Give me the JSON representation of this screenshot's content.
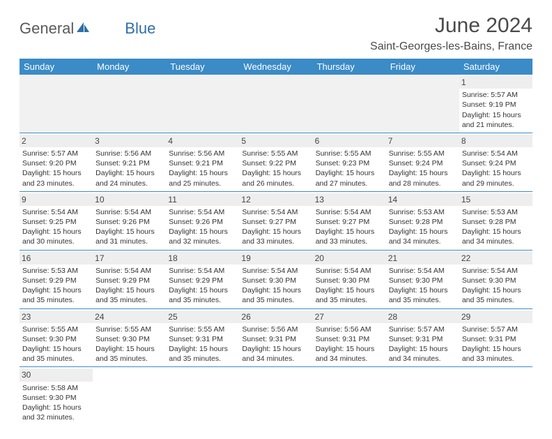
{
  "logo": {
    "text1": "General",
    "text2": "Blue"
  },
  "title": "June 2024",
  "location": "Saint-Georges-les-Bains, France",
  "colors": {
    "header_bg": "#3b8bc7",
    "header_text": "#ffffff",
    "daynum_bg": "#eeeeee",
    "border": "#3b8bc7",
    "body_text": "#333333",
    "title_text": "#4a4a4a"
  },
  "daysOfWeek": [
    "Sunday",
    "Monday",
    "Tuesday",
    "Wednesday",
    "Thursday",
    "Friday",
    "Saturday"
  ],
  "grid": [
    [
      null,
      null,
      null,
      null,
      null,
      null,
      {
        "n": "1",
        "sr": "5:57 AM",
        "ss": "9:19 PM",
        "dl": "15 hours and 21 minutes."
      }
    ],
    [
      {
        "n": "2",
        "sr": "5:57 AM",
        "ss": "9:20 PM",
        "dl": "15 hours and 23 minutes."
      },
      {
        "n": "3",
        "sr": "5:56 AM",
        "ss": "9:21 PM",
        "dl": "15 hours and 24 minutes."
      },
      {
        "n": "4",
        "sr": "5:56 AM",
        "ss": "9:21 PM",
        "dl": "15 hours and 25 minutes."
      },
      {
        "n": "5",
        "sr": "5:55 AM",
        "ss": "9:22 PM",
        "dl": "15 hours and 26 minutes."
      },
      {
        "n": "6",
        "sr": "5:55 AM",
        "ss": "9:23 PM",
        "dl": "15 hours and 27 minutes."
      },
      {
        "n": "7",
        "sr": "5:55 AM",
        "ss": "9:24 PM",
        "dl": "15 hours and 28 minutes."
      },
      {
        "n": "8",
        "sr": "5:54 AM",
        "ss": "9:24 PM",
        "dl": "15 hours and 29 minutes."
      }
    ],
    [
      {
        "n": "9",
        "sr": "5:54 AM",
        "ss": "9:25 PM",
        "dl": "15 hours and 30 minutes."
      },
      {
        "n": "10",
        "sr": "5:54 AM",
        "ss": "9:26 PM",
        "dl": "15 hours and 31 minutes."
      },
      {
        "n": "11",
        "sr": "5:54 AM",
        "ss": "9:26 PM",
        "dl": "15 hours and 32 minutes."
      },
      {
        "n": "12",
        "sr": "5:54 AM",
        "ss": "9:27 PM",
        "dl": "15 hours and 33 minutes."
      },
      {
        "n": "13",
        "sr": "5:54 AM",
        "ss": "9:27 PM",
        "dl": "15 hours and 33 minutes."
      },
      {
        "n": "14",
        "sr": "5:53 AM",
        "ss": "9:28 PM",
        "dl": "15 hours and 34 minutes."
      },
      {
        "n": "15",
        "sr": "5:53 AM",
        "ss": "9:28 PM",
        "dl": "15 hours and 34 minutes."
      }
    ],
    [
      {
        "n": "16",
        "sr": "5:53 AM",
        "ss": "9:29 PM",
        "dl": "15 hours and 35 minutes."
      },
      {
        "n": "17",
        "sr": "5:54 AM",
        "ss": "9:29 PM",
        "dl": "15 hours and 35 minutes."
      },
      {
        "n": "18",
        "sr": "5:54 AM",
        "ss": "9:29 PM",
        "dl": "15 hours and 35 minutes."
      },
      {
        "n": "19",
        "sr": "5:54 AM",
        "ss": "9:30 PM",
        "dl": "15 hours and 35 minutes."
      },
      {
        "n": "20",
        "sr": "5:54 AM",
        "ss": "9:30 PM",
        "dl": "15 hours and 35 minutes."
      },
      {
        "n": "21",
        "sr": "5:54 AM",
        "ss": "9:30 PM",
        "dl": "15 hours and 35 minutes."
      },
      {
        "n": "22",
        "sr": "5:54 AM",
        "ss": "9:30 PM",
        "dl": "15 hours and 35 minutes."
      }
    ],
    [
      {
        "n": "23",
        "sr": "5:55 AM",
        "ss": "9:30 PM",
        "dl": "15 hours and 35 minutes."
      },
      {
        "n": "24",
        "sr": "5:55 AM",
        "ss": "9:30 PM",
        "dl": "15 hours and 35 minutes."
      },
      {
        "n": "25",
        "sr": "5:55 AM",
        "ss": "9:31 PM",
        "dl": "15 hours and 35 minutes."
      },
      {
        "n": "26",
        "sr": "5:56 AM",
        "ss": "9:31 PM",
        "dl": "15 hours and 34 minutes."
      },
      {
        "n": "27",
        "sr": "5:56 AM",
        "ss": "9:31 PM",
        "dl": "15 hours and 34 minutes."
      },
      {
        "n": "28",
        "sr": "5:57 AM",
        "ss": "9:31 PM",
        "dl": "15 hours and 34 minutes."
      },
      {
        "n": "29",
        "sr": "5:57 AM",
        "ss": "9:31 PM",
        "dl": "15 hours and 33 minutes."
      }
    ],
    [
      {
        "n": "30",
        "sr": "5:58 AM",
        "ss": "9:30 PM",
        "dl": "15 hours and 32 minutes."
      },
      null,
      null,
      null,
      null,
      null,
      null
    ]
  ],
  "labels": {
    "sunrise": "Sunrise:",
    "sunset": "Sunset:",
    "daylight": "Daylight:"
  }
}
